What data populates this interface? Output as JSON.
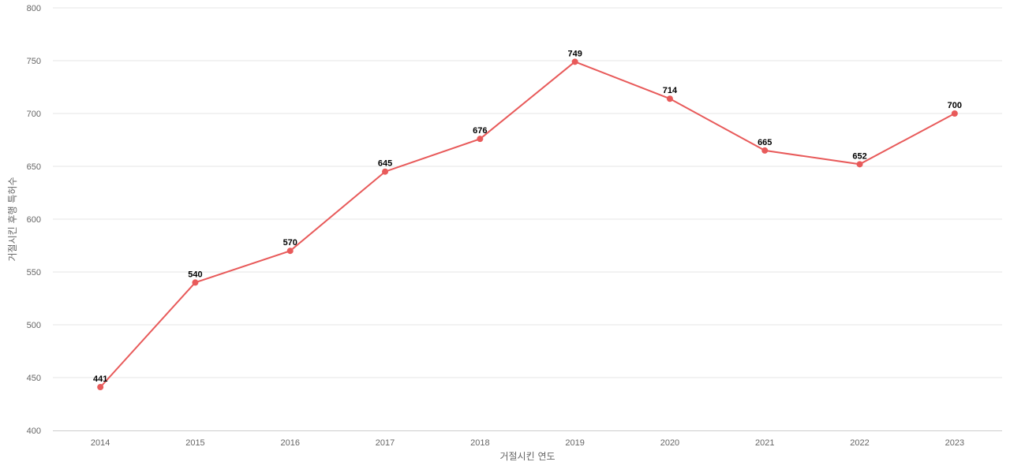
{
  "chart_data": {
    "type": "line",
    "title": "",
    "xlabel": "거절시킨 연도",
    "ylabel": "거절시킨 후행 특허수",
    "categories": [
      "2014",
      "2015",
      "2016",
      "2017",
      "2018",
      "2019",
      "2020",
      "2021",
      "2022",
      "2023"
    ],
    "series": [
      {
        "name": "",
        "color": "#e85a5a",
        "values": [
          441,
          540,
          570,
          645,
          676,
          749,
          714,
          665,
          652,
          700
        ]
      }
    ],
    "ylim": [
      400,
      800
    ],
    "yticks": [
      400,
      450,
      500,
      550,
      600,
      650,
      700,
      750,
      800
    ],
    "grid": true,
    "legend": "none"
  }
}
